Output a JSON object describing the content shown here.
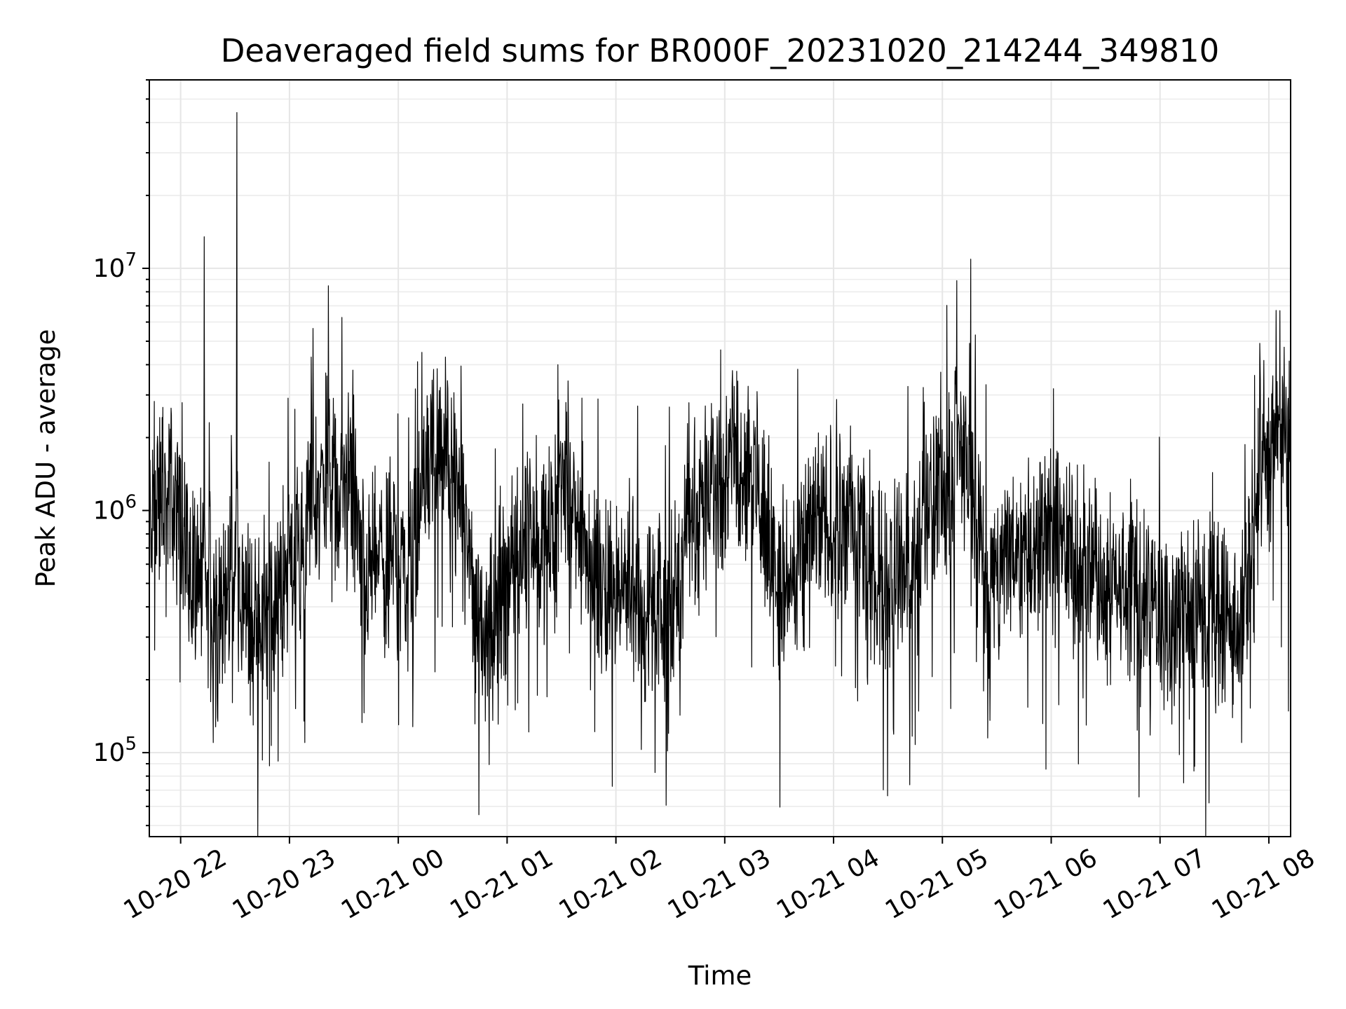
{
  "chart_data": {
    "type": "line",
    "title": "Deaveraged field sums for BR000F_20231020_214244_349810",
    "xlabel": "Time",
    "ylabel": "Peak ADU - average",
    "yscale": "log",
    "grid": true,
    "colors": {
      "line": "#000000",
      "grid": "#e6e6e6",
      "background": "#ffffff"
    },
    "xlim": [
      "2023-10-20T21:42:44",
      "2023-10-21T08:12:00"
    ],
    "ylim": [
      45000,
      60000000
    ],
    "x_ticks": [
      {
        "value": "2023-10-20T22:00",
        "label": "10-20 22"
      },
      {
        "value": "2023-10-20T23:00",
        "label": "10-20 23"
      },
      {
        "value": "2023-10-21T00:00",
        "label": "10-21 00"
      },
      {
        "value": "2023-10-21T01:00",
        "label": "10-21 01"
      },
      {
        "value": "2023-10-21T02:00",
        "label": "10-21 02"
      },
      {
        "value": "2023-10-21T03:00",
        "label": "10-21 03"
      },
      {
        "value": "2023-10-21T04:00",
        "label": "10-21 04"
      },
      {
        "value": "2023-10-21T05:00",
        "label": "10-21 05"
      },
      {
        "value": "2023-10-21T06:00",
        "label": "10-21 06"
      },
      {
        "value": "2023-10-21T07:00",
        "label": "10-21 07"
      },
      {
        "value": "2023-10-21T08:00",
        "label": "10-21 08"
      }
    ],
    "y_ticks": [
      {
        "value": 100000,
        "label_base": "10",
        "label_exp": "5"
      },
      {
        "value": 1000000,
        "label_base": "10",
        "label_exp": "6"
      },
      {
        "value": 10000000,
        "label_base": "10",
        "label_exp": "7"
      }
    ],
    "series": [
      {
        "x_start": "2023-10-20T21:42:44",
        "x_end": "2023-10-21T08:12:00",
        "points": [
          [
            "2023-10-20T21:42",
            700000
          ],
          [
            "2023-10-20T21:48",
            1500000
          ],
          [
            "2023-10-20T21:54",
            1800000
          ],
          [
            "2023-10-20T22:00",
            1600000
          ],
          [
            "2023-10-20T22:04",
            450000
          ],
          [
            "2023-10-20T22:06",
            300000
          ],
          [
            "2023-10-20T22:12",
            600000
          ],
          [
            "2023-10-20T22:13",
            13500000
          ],
          [
            "2023-10-20T22:14",
            400000
          ],
          [
            "2023-10-20T22:18",
            110000
          ],
          [
            "2023-10-20T22:24",
            500000
          ],
          [
            "2023-10-20T22:30",
            900000
          ],
          [
            "2023-10-20T22:31",
            44000000
          ],
          [
            "2023-10-20T22:32",
            700000
          ],
          [
            "2023-10-20T22:40",
            130000
          ],
          [
            "2023-10-20T22:47",
            600000
          ],
          [
            "2023-10-20T22:50",
            107000
          ],
          [
            "2023-10-20T22:55",
            900000
          ],
          [
            "2023-10-20T23:00",
            650000
          ],
          [
            "2023-10-20T23:05",
            800000
          ],
          [
            "2023-10-20T23:08",
            135000
          ],
          [
            "2023-10-20T23:12",
            4300000
          ],
          [
            "2023-10-20T23:15",
            600000
          ],
          [
            "2023-10-20T23:20",
            3700000
          ],
          [
            "2023-10-20T23:28",
            800000
          ],
          [
            "2023-10-20T23:35",
            3800000
          ],
          [
            "2023-10-20T23:40",
            133000
          ],
          [
            "2023-10-20T23:50",
            1000000
          ],
          [
            "2023-10-21T00:00",
            900000
          ],
          [
            "2023-10-21T00:08",
            128000
          ],
          [
            "2023-10-21T00:13",
            4500000
          ],
          [
            "2023-10-21T00:20",
            1500000
          ],
          [
            "2023-10-21T00:26",
            4300000
          ],
          [
            "2023-10-21T00:35",
            900000
          ],
          [
            "2023-10-21T00:48",
            135000
          ],
          [
            "2023-10-21T01:00",
            700000
          ],
          [
            "2023-10-21T01:15",
            1200000
          ],
          [
            "2023-10-21T01:22",
            170000
          ],
          [
            "2023-10-21T01:28",
            4000000
          ],
          [
            "2023-10-21T01:40",
            800000
          ],
          [
            "2023-10-21T01:55",
            300000
          ],
          [
            "2023-10-21T02:05",
            500000
          ],
          [
            "2023-10-21T02:12",
            2700000
          ],
          [
            "2023-10-21T02:14",
            103000
          ],
          [
            "2023-10-21T02:30",
            450000
          ],
          [
            "2023-10-21T02:45",
            1200000
          ],
          [
            "2023-10-21T03:00",
            1300000
          ],
          [
            "2023-10-21T03:18",
            2600000
          ],
          [
            "2023-10-21T03:30",
            200000
          ],
          [
            "2023-10-21T03:45",
            1000000
          ],
          [
            "2023-10-21T04:00",
            900000
          ],
          [
            "2023-10-21T04:10",
            1100000
          ],
          [
            "2023-10-21T04:25",
            450000
          ],
          [
            "2023-10-21T04:40",
            700000
          ],
          [
            "2023-10-21T04:45",
            108000
          ],
          [
            "2023-10-21T04:50",
            2800000
          ],
          [
            "2023-10-21T05:00",
            800000
          ],
          [
            "2023-10-21T05:15",
            4900000
          ],
          [
            "2023-10-21T05:25",
            115000
          ],
          [
            "2023-10-21T05:35",
            1000000
          ],
          [
            "2023-10-21T05:50",
            700000
          ],
          [
            "2023-10-21T06:05",
            800000
          ],
          [
            "2023-10-21T06:20",
            500000
          ],
          [
            "2023-10-21T06:35",
            450000
          ],
          [
            "2023-10-21T06:55",
            600000
          ],
          [
            "2023-10-21T07:05",
            300000
          ],
          [
            "2023-10-21T07:13",
            75000
          ],
          [
            "2023-10-21T07:20",
            350000
          ],
          [
            "2023-10-21T07:27",
            62000
          ],
          [
            "2023-10-21T07:35",
            250000
          ],
          [
            "2023-10-21T07:45",
            110000
          ],
          [
            "2023-10-21T07:50",
            500000
          ],
          [
            "2023-10-21T07:55",
            4900000
          ],
          [
            "2023-10-21T08:00",
            1500000
          ],
          [
            "2023-10-21T08:04",
            6700000
          ],
          [
            "2023-10-21T08:08",
            1600000
          ],
          [
            "2023-10-21T08:12",
            1400000
          ]
        ]
      }
    ]
  }
}
